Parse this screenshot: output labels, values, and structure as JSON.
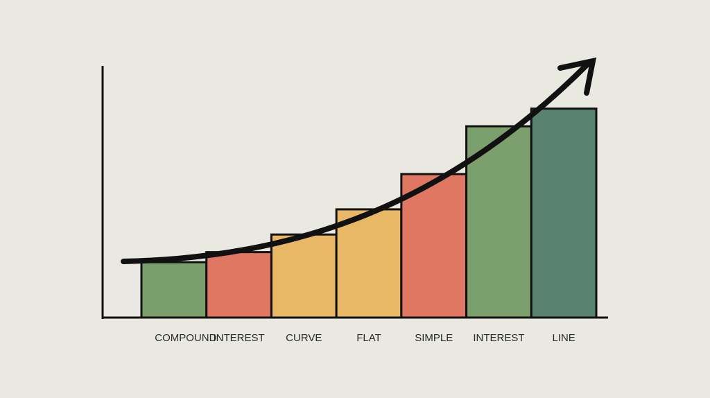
{
  "chart_data": {
    "type": "bar",
    "categories": [
      "COMPOUND",
      "INTEREST",
      "CURVE",
      "FLAT",
      "SIMPLE",
      "INTEREST",
      "LINE"
    ],
    "values": [
      22,
      26,
      33,
      43,
      57,
      76,
      83
    ],
    "colors": [
      "#7a9e6c",
      "#e07762",
      "#e8b866",
      "#e8b866",
      "#e07762",
      "#7ba06e",
      "#5a8271"
    ],
    "ylim": [
      0,
      100
    ]
  }
}
